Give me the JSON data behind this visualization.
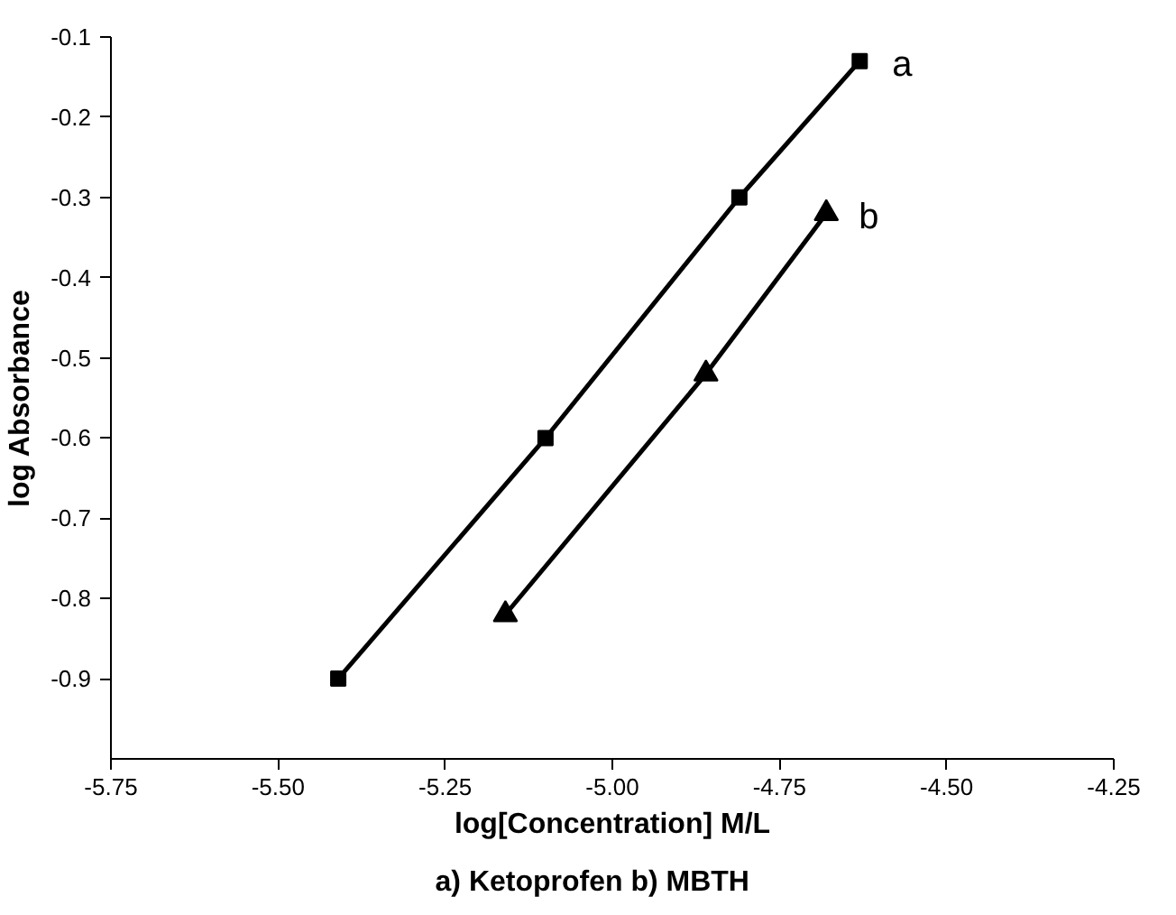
{
  "chart_data": {
    "type": "line",
    "xlabel": "log[Concentration] M/L",
    "ylabel": "log Absorbance",
    "xlim": [
      -5.75,
      -4.25
    ],
    "xticks": [
      {
        "value": -5.75,
        "label": "-5.75"
      },
      {
        "value": -5.5,
        "label": "-5.50"
      },
      {
        "value": -5.25,
        "label": "-5.25"
      },
      {
        "value": -5.0,
        "label": "-5.00"
      },
      {
        "value": -4.75,
        "label": "-4.75"
      },
      {
        "value": -4.5,
        "label": "-4.50"
      },
      {
        "value": -4.25,
        "label": "-4.25"
      }
    ],
    "ylim": [
      -1.0,
      -0.1
    ],
    "yticks": [
      -0.9,
      -0.8,
      -0.7,
      -0.6,
      -0.5,
      -0.4,
      -0.3,
      -0.2,
      -0.1
    ],
    "grid": false,
    "series": [
      {
        "name": "a",
        "color": "#000000",
        "marker": "square",
        "x": [
          -5.41,
          -5.1,
          -4.81,
          -4.63
        ],
        "values": [
          -0.9,
          -0.6,
          -0.3,
          -0.13
        ]
      },
      {
        "name": "b",
        "color": "#000000",
        "marker": "triangle",
        "x": [
          -5.16,
          -4.86,
          -4.68
        ],
        "values": [
          -0.82,
          -0.52,
          -0.32
        ]
      }
    ],
    "annotations": [
      "a) Ketoprofen      b) MBTH"
    ]
  }
}
